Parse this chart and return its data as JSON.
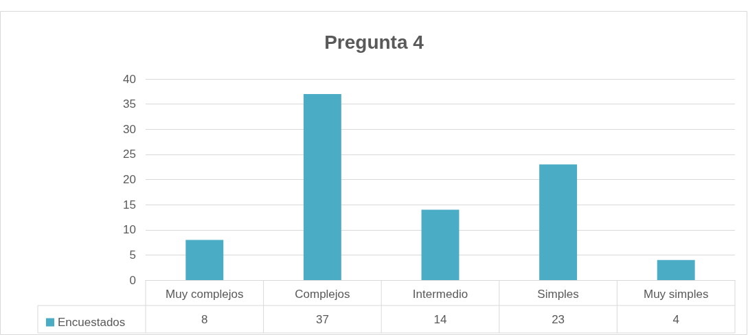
{
  "chart_data": {
    "type": "bar",
    "title": "Pregunta 4",
    "categories": [
      "Muy complejos",
      "Complejos",
      "Intermedio",
      "Simples",
      "Muy simples"
    ],
    "series": [
      {
        "name": "Encuestados",
        "color": "#4bacc6",
        "values": [
          8,
          37,
          14,
          23,
          4
        ]
      }
    ],
    "ylim": [
      0,
      40
    ],
    "yticks": [
      0,
      5,
      10,
      15,
      20,
      25,
      30,
      35,
      40
    ],
    "grid": "y",
    "legend": "bottom",
    "data_labels": true
  }
}
